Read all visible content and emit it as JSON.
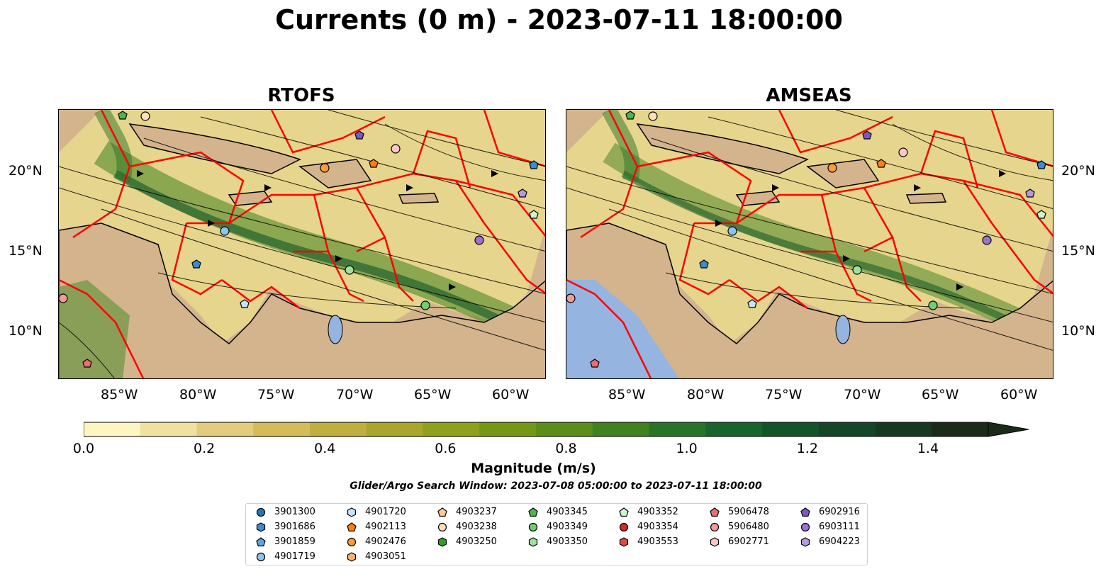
{
  "figure": {
    "title": "Currents (0 m) - 2023-07-11 18:00:00",
    "panels": [
      {
        "title": "RTOFS"
      },
      {
        "title": "AMSEAS"
      }
    ],
    "x_ticks": [
      "85°W",
      "80°W",
      "75°W",
      "70°W",
      "65°W",
      "60°W"
    ],
    "y_ticks": [
      "20°N",
      "15°N",
      "10°N"
    ],
    "colorbar": {
      "label": "Magnitude (m/s)",
      "ticks": [
        "0.0",
        "0.2",
        "0.4",
        "0.6",
        "0.8",
        "1.0",
        "1.2",
        "1.4"
      ],
      "range": [
        0,
        1.5
      ],
      "extend": "max",
      "colors": [
        "#fdf5c2",
        "#f0e1a0",
        "#e3cd7c",
        "#d4bc5a",
        "#bfae40",
        "#a9a62b",
        "#8fa01c",
        "#749814",
        "#5a8e18",
        "#3f821f",
        "#287427",
        "#18642c",
        "#135528",
        "#154626",
        "#183921",
        "#1a2b19"
      ]
    },
    "search_window": "Glider/Argo Search Window: 2023-07-08 05:00:00 to 2023-07-11 18:00:00",
    "colors": {
      "land": "#d4b48c",
      "boundary": "#ff0000",
      "pacific": "#95b4e0"
    }
  },
  "legend": {
    "columns": [
      [
        {
          "id": "3901300",
          "marker": "circle",
          "color": "#1f77b4"
        },
        {
          "id": "3901686",
          "marker": "hexagon",
          "color": "#3a8bd0"
        },
        {
          "id": "3901859",
          "marker": "pentagon",
          "color": "#5aa6e0"
        },
        {
          "id": "4901719",
          "marker": "circle",
          "color": "#8cc4f0"
        }
      ],
      [
        {
          "id": "4901720",
          "marker": "hexagon",
          "color": "#c6e4fb"
        },
        {
          "id": "4902113",
          "marker": "pentagon",
          "color": "#ff7f0e"
        },
        {
          "id": "4902476",
          "marker": "circle",
          "color": "#ff9a3c"
        },
        {
          "id": "4903051",
          "marker": "hexagon",
          "color": "#ffb366"
        }
      ],
      [
        {
          "id": "4903237",
          "marker": "pentagon",
          "color": "#ffc894"
        },
        {
          "id": "4903238",
          "marker": "circle",
          "color": "#ffe0bd"
        },
        {
          "id": "4903250",
          "marker": "hexagon",
          "color": "#2ca02c"
        }
      ],
      [
        {
          "id": "4903345",
          "marker": "pentagon",
          "color": "#4cb74c"
        },
        {
          "id": "4903349",
          "marker": "circle",
          "color": "#72cc72"
        },
        {
          "id": "4903350",
          "marker": "hexagon",
          "color": "#a0e0a0"
        }
      ],
      [
        {
          "id": "4903352",
          "marker": "pentagon",
          "color": "#ccf5cc"
        },
        {
          "id": "4903354",
          "marker": "circle",
          "color": "#d62728"
        },
        {
          "id": "4903553",
          "marker": "hexagon",
          "color": "#e04848"
        }
      ],
      [
        {
          "id": "5906478",
          "marker": "pentagon",
          "color": "#ea6e6e"
        },
        {
          "id": "5906480",
          "marker": "circle",
          "color": "#f29b9b"
        },
        {
          "id": "6902771",
          "marker": "hexagon",
          "color": "#fbc6c6"
        }
      ],
      [
        {
          "id": "6902916",
          "marker": "pentagon",
          "color": "#7e57c2"
        },
        {
          "id": "6903111",
          "marker": "circle",
          "color": "#9b72cf"
        },
        {
          "id": "6904223",
          "marker": "hexagon",
          "color": "#b59ae0"
        }
      ]
    ]
  }
}
